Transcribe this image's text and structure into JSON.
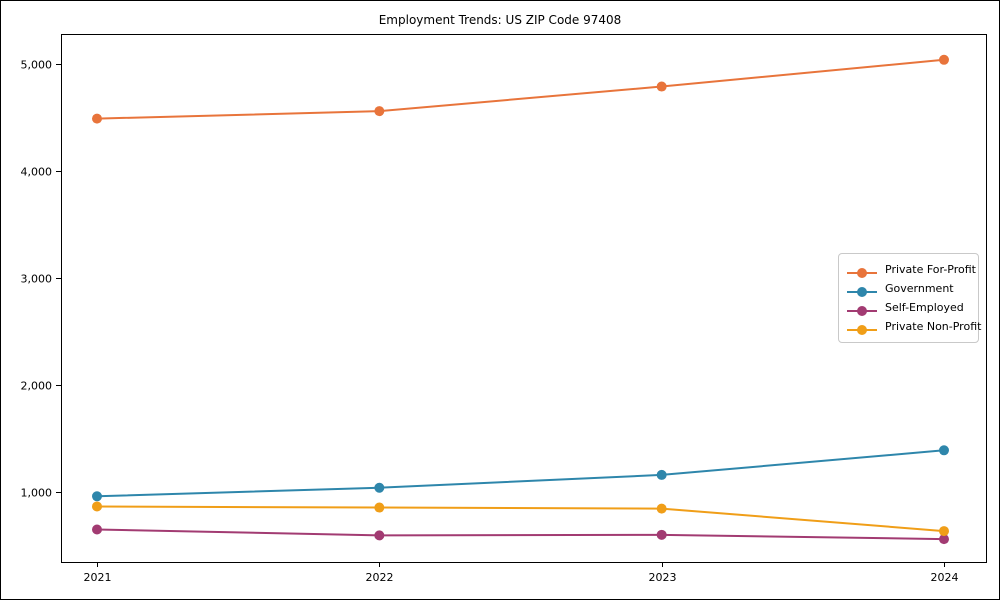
{
  "title": "Employment Trends: US ZIP Code 97408",
  "chart_data": {
    "type": "line",
    "title": "Employment Trends: US ZIP Code 97408",
    "x": [
      "2021",
      "2022",
      "2023",
      "2024"
    ],
    "xlabel": "",
    "ylabel": "",
    "ylim": [
      346,
      5281
    ],
    "grid": false,
    "legend_position": "center-right",
    "marker": "circle",
    "y_ticks": [
      {
        "value": 1000,
        "label": "1,000"
      },
      {
        "value": 2000,
        "label": "2,000"
      },
      {
        "value": 3000,
        "label": "3,000"
      },
      {
        "value": 4000,
        "label": "4,000"
      },
      {
        "value": 5000,
        "label": "5,000"
      }
    ],
    "series": [
      {
        "name": "Private For-Profit",
        "color": "#E8743B",
        "values": [
          4490,
          4560,
          4790,
          5040
        ]
      },
      {
        "name": "Government",
        "color": "#2E86AB",
        "values": [
          960,
          1040,
          1160,
          1390
        ]
      },
      {
        "name": "Self-Employed",
        "color": "#A23B72",
        "values": [
          650,
          595,
          600,
          560
        ]
      },
      {
        "name": "Private Non-Profit",
        "color": "#F09E18",
        "values": [
          865,
          855,
          845,
          635
        ]
      }
    ]
  }
}
